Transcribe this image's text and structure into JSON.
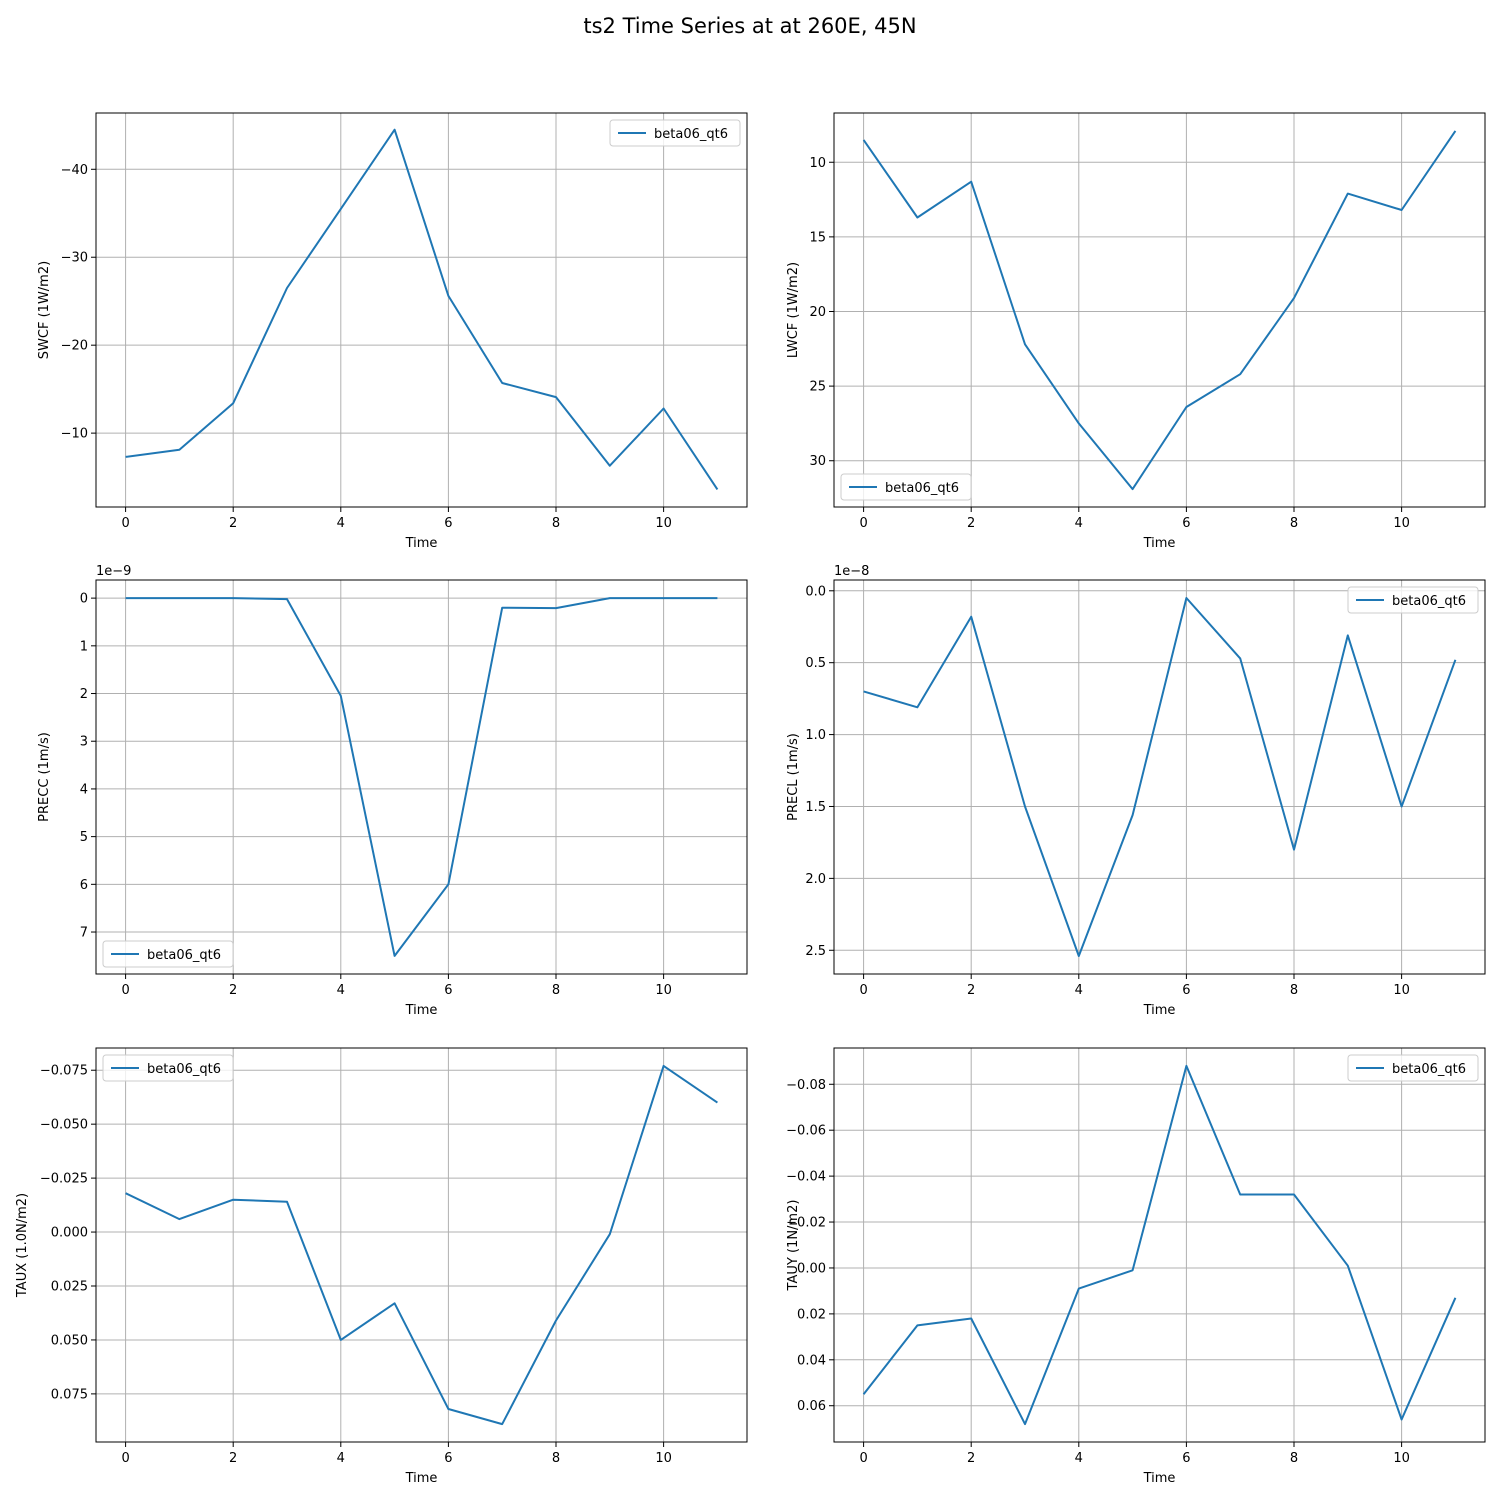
{
  "figure": {
    "title": "ts2 Time Series at at 260E, 45N"
  },
  "colors": {
    "line": "#1f77b4",
    "grid": "#b0b0b0",
    "axis": "#000000"
  },
  "chart_data": [
    {
      "type": "line",
      "xlabel": "Time",
      "ylabel": "SWCF (1W/m2)",
      "x": [
        0,
        1,
        2,
        3,
        4,
        5,
        6,
        7,
        8,
        9,
        10,
        11
      ],
      "series": [
        {
          "name": "beta06_qt6",
          "values": [
            -7.3,
            -8.1,
            -13.4,
            -26.5,
            -35.5,
            -44.5,
            -25.6,
            -15.7,
            -14.1,
            -6.3,
            -12.8,
            -3.6
          ]
        }
      ],
      "xticks": [
        0,
        2,
        4,
        6,
        8,
        10
      ],
      "xtick_labels": [
        "0",
        "2",
        "4",
        "6",
        "8",
        "10"
      ],
      "xlim": [
        -0.55,
        11.55
      ],
      "yticks": [
        -40,
        -30,
        -20,
        -10
      ],
      "ytick_labels": [
        "−40",
        "−30",
        "−20",
        "−10"
      ],
      "ylim": [
        -46.4,
        -1.6
      ],
      "y_inverted": true,
      "offset_text": "",
      "legend": "upper right",
      "grid": true
    },
    {
      "type": "line",
      "xlabel": "Time",
      "ylabel": "LWCF (1W/m2)",
      "x": [
        0,
        1,
        2,
        3,
        4,
        5,
        6,
        7,
        8,
        9,
        10,
        11
      ],
      "series": [
        {
          "name": "beta06_qt6",
          "values": [
            8.5,
            13.7,
            11.3,
            22.2,
            27.5,
            31.9,
            26.4,
            24.2,
            19.1,
            12.1,
            13.2,
            7.9
          ]
        }
      ],
      "xticks": [
        0,
        2,
        4,
        6,
        8,
        10
      ],
      "xtick_labels": [
        "0",
        "2",
        "4",
        "6",
        "8",
        "10"
      ],
      "xlim": [
        -0.55,
        11.55
      ],
      "yticks": [
        10,
        15,
        20,
        25,
        30
      ],
      "ytick_labels": [
        "10",
        "15",
        "20",
        "25",
        "30"
      ],
      "ylim": [
        6.7,
        33.1
      ],
      "y_inverted": true,
      "offset_text": "",
      "legend": "lower left",
      "grid": true
    },
    {
      "type": "line",
      "xlabel": "Time",
      "ylabel": "PRECC (1m/s)",
      "x": [
        0,
        1,
        2,
        3,
        4,
        5,
        6,
        7,
        8,
        9,
        10,
        11
      ],
      "series": [
        {
          "name": "beta06_qt6",
          "values": [
            0,
            0,
            0,
            0.02,
            2.05,
            7.5,
            6.0,
            0.2,
            0.21,
            0,
            0,
            0
          ]
        }
      ],
      "xticks": [
        0,
        2,
        4,
        6,
        8,
        10
      ],
      "xtick_labels": [
        "0",
        "2",
        "4",
        "6",
        "8",
        "10"
      ],
      "xlim": [
        -0.55,
        11.55
      ],
      "yticks": [
        0,
        1,
        2,
        3,
        4,
        5,
        6,
        7
      ],
      "ytick_labels": [
        "0",
        "1",
        "2",
        "3",
        "4",
        "5",
        "6",
        "7"
      ],
      "ylim": [
        -0.38,
        7.88
      ],
      "y_inverted": true,
      "offset_text": "1e−9",
      "legend": "lower left",
      "grid": true
    },
    {
      "type": "line",
      "xlabel": "Time",
      "ylabel": "PRECL (1m/s)",
      "x": [
        0,
        1,
        2,
        3,
        4,
        5,
        6,
        7,
        8,
        9,
        10,
        11
      ],
      "series": [
        {
          "name": "beta06_qt6",
          "values": [
            0.7,
            0.81,
            0.18,
            1.5,
            2.54,
            1.56,
            0.05,
            0.47,
            1.8,
            0.31,
            1.5,
            0.48
          ]
        }
      ],
      "xticks": [
        0,
        2,
        4,
        6,
        8,
        10
      ],
      "xtick_labels": [
        "0",
        "2",
        "4",
        "6",
        "8",
        "10"
      ],
      "xlim": [
        -0.55,
        11.55
      ],
      "yticks": [
        0,
        0.5,
        1,
        1.5,
        2,
        2.5
      ],
      "ytick_labels": [
        "0.0",
        "0.5",
        "1.0",
        "1.5",
        "2.0",
        "2.5"
      ],
      "ylim": [
        -0.075,
        2.665
      ],
      "y_inverted": true,
      "offset_text": "1e−8",
      "legend": "upper right",
      "grid": true
    },
    {
      "type": "line",
      "xlabel": "Time",
      "ylabel": "TAUX (1.0N/m2)",
      "x": [
        0,
        1,
        2,
        3,
        4,
        5,
        6,
        7,
        8,
        9,
        10,
        11
      ],
      "series": [
        {
          "name": "beta06_qt6",
          "values": [
            -0.018,
            -0.006,
            -0.015,
            -0.014,
            0.05,
            0.033,
            0.082,
            0.089,
            0.041,
            0.001,
            -0.077,
            -0.06
          ]
        }
      ],
      "xticks": [
        0,
        2,
        4,
        6,
        8,
        10
      ],
      "xtick_labels": [
        "0",
        "2",
        "4",
        "6",
        "8",
        "10"
      ],
      "xlim": [
        -0.55,
        11.55
      ],
      "yticks": [
        -0.075,
        -0.05,
        -0.025,
        0,
        0.025,
        0.05,
        0.075
      ],
      "ytick_labels": [
        "−0.075",
        "−0.050",
        "−0.025",
        "0.000",
        "0.025",
        "0.050",
        "0.075"
      ],
      "ylim": [
        -0.0853,
        0.0973
      ],
      "y_inverted": true,
      "offset_text": "",
      "legend": "upper left",
      "grid": true
    },
    {
      "type": "line",
      "xlabel": "Time",
      "ylabel": "TAUY (1N/m2)",
      "x": [
        0,
        1,
        2,
        3,
        4,
        5,
        6,
        7,
        8,
        9,
        10,
        11
      ],
      "series": [
        {
          "name": "beta06_qt6",
          "values": [
            0.055,
            0.025,
            0.022,
            0.068,
            0.009,
            0.001,
            -0.088,
            -0.032,
            -0.032,
            -0.001,
            0.066,
            0.013
          ]
        }
      ],
      "xticks": [
        0,
        2,
        4,
        6,
        8,
        10
      ],
      "xtick_labels": [
        "0",
        "2",
        "4",
        "6",
        "8",
        "10"
      ],
      "xlim": [
        -0.55,
        11.55
      ],
      "yticks": [
        -0.08,
        -0.06,
        -0.04,
        -0.02,
        0,
        0.02,
        0.04,
        0.06
      ],
      "ytick_labels": [
        "−0.08",
        "−0.06",
        "−0.04",
        "−0.02",
        "0.00",
        "0.02",
        "0.04",
        "0.06"
      ],
      "ylim": [
        -0.0958,
        0.0758
      ],
      "y_inverted": true,
      "offset_text": "",
      "legend": "upper right",
      "grid": true
    }
  ]
}
